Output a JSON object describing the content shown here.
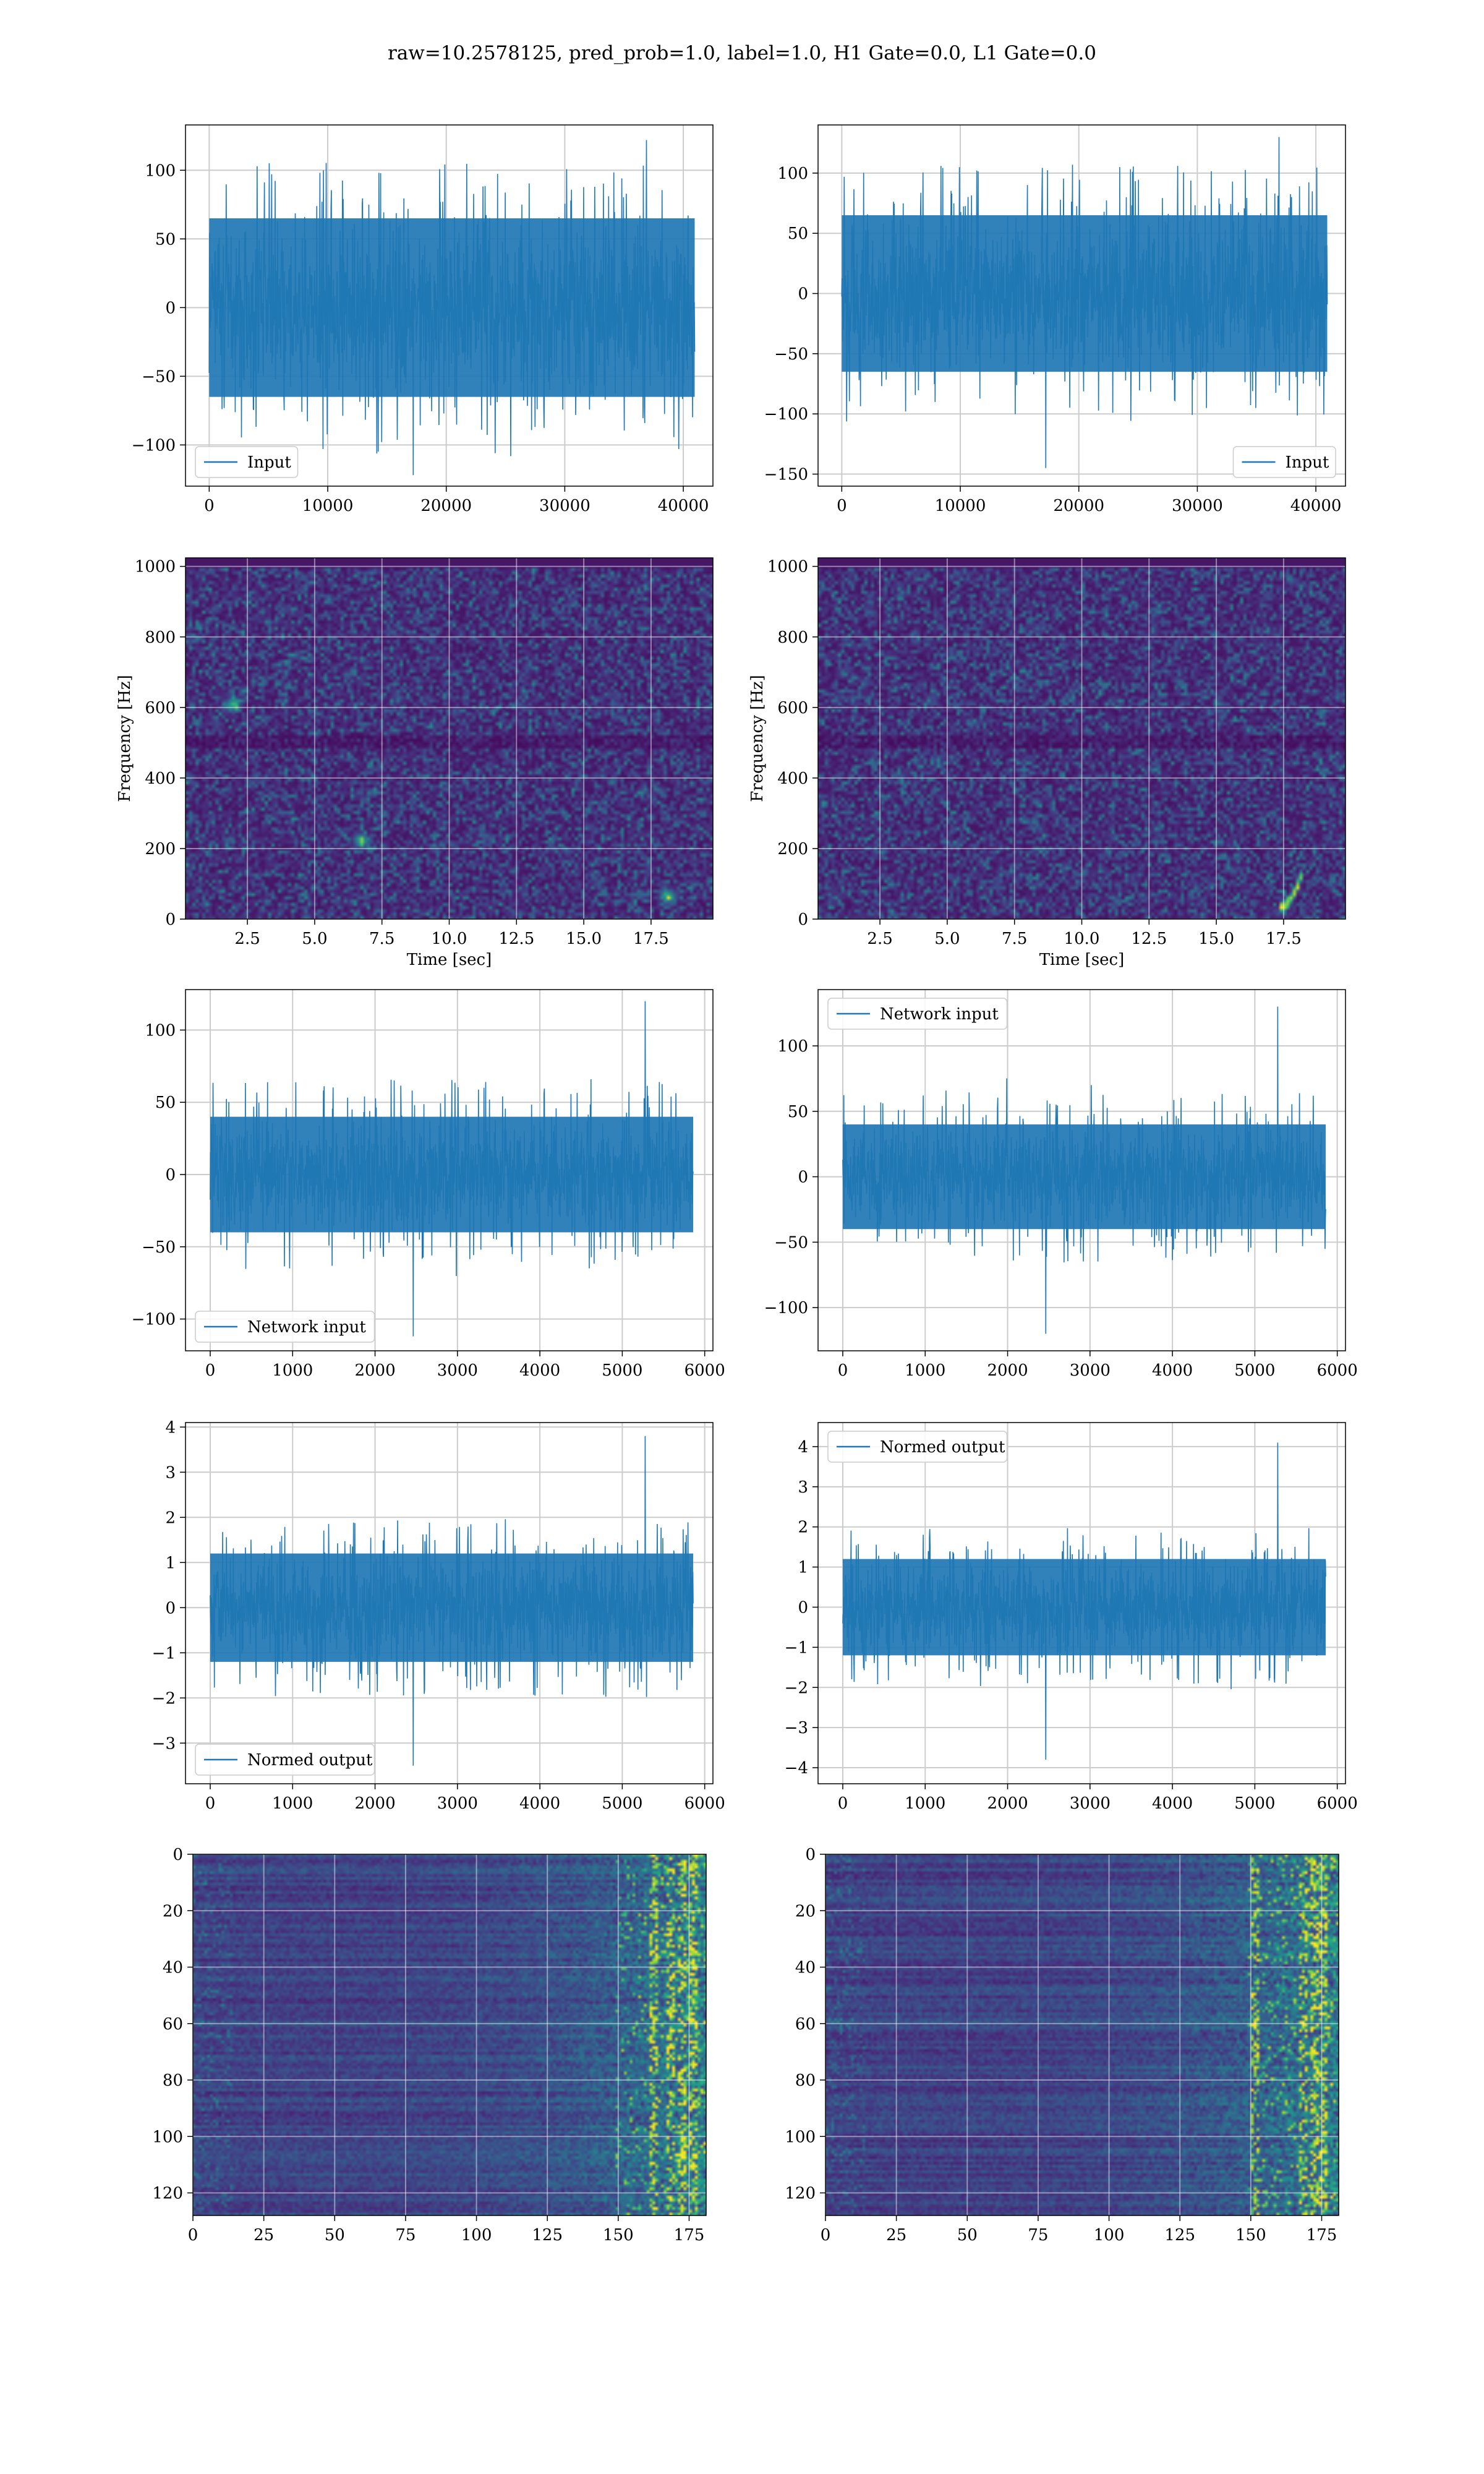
{
  "figure": {
    "suptitle": "raw=10.2578125, pred_prob=1.0, label=1.0, H1 Gate=0.0, L1 Gate=0.0"
  },
  "colors": {
    "line": "#1f77b4",
    "grid": "#cccccc",
    "viridis": [
      "#440154",
      "#482878",
      "#3e4989",
      "#31688e",
      "#26828e",
      "#1f9e89",
      "#35b779",
      "#6ece58",
      "#b5de2b",
      "#fde725"
    ]
  },
  "chart_data": [
    {
      "type": "line",
      "panel": "row1-left",
      "series": [
        {
          "name": "Input",
          "description": "dense noise time series",
          "center": 0,
          "typical_amplitude": 65,
          "peak_max": 122,
          "peak_min": -122
        }
      ],
      "x_ticks": [
        0,
        10000,
        20000,
        30000,
        40000
      ],
      "y_ticks": [
        -100,
        -50,
        0,
        50,
        100
      ],
      "xlim": [
        -2000,
        42500
      ],
      "ylim": [
        -130,
        133
      ],
      "x_data_range": [
        0,
        40960
      ],
      "legend": {
        "label": "Input",
        "placement": "lower-left"
      },
      "grid": true
    },
    {
      "type": "line",
      "panel": "row1-right",
      "series": [
        {
          "name": "Input",
          "description": "dense noise time series",
          "center": 0,
          "typical_amplitude": 65,
          "peak_max": 130,
          "peak_min": -145
        }
      ],
      "x_ticks": [
        0,
        10000,
        20000,
        30000,
        40000
      ],
      "y_ticks": [
        -150,
        -100,
        -50,
        0,
        50,
        100
      ],
      "xlim": [
        -2000,
        42500
      ],
      "ylim": [
        -160,
        140
      ],
      "x_data_range": [
        0,
        40960
      ],
      "legend": {
        "label": "Input",
        "placement": "lower-right"
      },
      "grid": true
    },
    {
      "type": "heatmap",
      "panel": "row2-left",
      "description": "spectrogram",
      "xlabel": "Time [sec]",
      "ylabel": "Frequency [Hz]",
      "x_ticks": [
        "2.5",
        "5.0",
        "7.5",
        "10.0",
        "12.5",
        "15.0",
        "17.5"
      ],
      "y_ticks": [
        "0",
        "200",
        "400",
        "600",
        "800",
        "1000"
      ],
      "xlim": [
        0.2,
        19.8
      ],
      "ylim": [
        0,
        1024
      ],
      "bright_band_hz": [
        490,
        510
      ],
      "hotspots": [
        {
          "t": 6.7,
          "f": 220
        },
        {
          "t": 1.9,
          "f": 610
        },
        {
          "t": 18.2,
          "f": 60
        }
      ],
      "grid": true
    },
    {
      "type": "heatmap",
      "panel": "row2-right",
      "description": "spectrogram with chirp near end",
      "xlabel": "Time [sec]",
      "ylabel": "Frequency [Hz]",
      "x_ticks": [
        "2.5",
        "5.0",
        "7.5",
        "10.0",
        "12.5",
        "15.0",
        "17.5"
      ],
      "y_ticks": [
        "0",
        "200",
        "400",
        "600",
        "800",
        "1000"
      ],
      "xlim": [
        0.2,
        19.8
      ],
      "ylim": [
        0,
        1024
      ],
      "bright_band_hz": [
        490,
        510
      ],
      "chirp": {
        "t_start": 17.4,
        "t_end": 18.3,
        "f_start": 30,
        "f_end": 140
      },
      "grid": true
    },
    {
      "type": "line",
      "panel": "row3-left",
      "series": [
        {
          "name": "Network input",
          "description": "whitened time series",
          "center": 0,
          "typical_amplitude": 40,
          "peak_max": 120,
          "peak_min": -112
        }
      ],
      "x_ticks": [
        0,
        1000,
        2000,
        3000,
        4000,
        5000,
        6000
      ],
      "y_ticks": [
        -100,
        -50,
        0,
        50,
        100
      ],
      "xlim": [
        -300,
        6100
      ],
      "ylim": [
        -122,
        128
      ],
      "x_data_range": [
        0,
        5860
      ],
      "legend": {
        "label": "Network input",
        "placement": "lower-left"
      },
      "grid": true
    },
    {
      "type": "line",
      "panel": "row3-right",
      "series": [
        {
          "name": "Network input",
          "description": "whitened time series",
          "center": 0,
          "typical_amplitude": 40,
          "peak_max": 130,
          "peak_min": -120
        }
      ],
      "x_ticks": [
        0,
        1000,
        2000,
        3000,
        4000,
        5000,
        6000
      ],
      "y_ticks": [
        -100,
        -50,
        0,
        50,
        100
      ],
      "xlim": [
        -300,
        6100
      ],
      "ylim": [
        -133,
        143
      ],
      "x_data_range": [
        0,
        5860
      ],
      "legend": {
        "label": "Network input",
        "placement": "upper-left"
      },
      "grid": true
    },
    {
      "type": "line",
      "panel": "row4-left",
      "series": [
        {
          "name": "Normed output",
          "description": "normalized time series",
          "center": 0,
          "typical_amplitude": 1.2,
          "peak_max": 3.8,
          "peak_min": -3.5
        }
      ],
      "x_ticks": [
        0,
        1000,
        2000,
        3000,
        4000,
        5000,
        6000
      ],
      "y_ticks": [
        -3,
        -2,
        -1,
        0,
        1,
        2,
        3,
        4
      ],
      "xlim": [
        -300,
        6100
      ],
      "ylim": [
        -3.9,
        4.1
      ],
      "x_data_range": [
        0,
        5860
      ],
      "legend": {
        "label": "Normed output",
        "placement": "lower-left"
      },
      "grid": true
    },
    {
      "type": "line",
      "panel": "row4-right",
      "series": [
        {
          "name": "Normed output",
          "description": "normalized time series",
          "center": 0,
          "typical_amplitude": 1.2,
          "peak_max": 4.1,
          "peak_min": -3.8
        }
      ],
      "x_ticks": [
        0,
        1000,
        2000,
        3000,
        4000,
        5000,
        6000
      ],
      "y_ticks": [
        -4,
        -3,
        -2,
        -1,
        0,
        1,
        2,
        3,
        4
      ],
      "xlim": [
        -300,
        6100
      ],
      "ylim": [
        -4.4,
        4.6
      ],
      "x_data_range": [
        0,
        5860
      ],
      "legend": {
        "label": "Normed output",
        "placement": "upper-left"
      },
      "grid": true
    },
    {
      "type": "heatmap",
      "panel": "row5-left",
      "description": "feature map, 128 channels by 183 steps, activity increasing toward the right",
      "x_ticks": [
        "0",
        "25",
        "50",
        "75",
        "100",
        "125",
        "150",
        "175"
      ],
      "y_ticks": [
        "0",
        "20",
        "40",
        "60",
        "80",
        "100",
        "120"
      ],
      "xlim": [
        0,
        181
      ],
      "ylim": [
        128,
        0
      ],
      "hot_columns": [
        162,
        168,
        172,
        176
      ],
      "grid": true
    },
    {
      "type": "heatmap",
      "panel": "row5-right",
      "description": "feature map, 128 channels by 183 steps, activity increasing toward the right",
      "x_ticks": [
        "0",
        "25",
        "50",
        "75",
        "100",
        "125",
        "150",
        "175"
      ],
      "y_ticks": [
        "0",
        "20",
        "40",
        "60",
        "80",
        "100",
        "120"
      ],
      "xlim": [
        0,
        181
      ],
      "ylim": [
        128,
        0
      ],
      "hot_columns": [
        151,
        168,
        172,
        175
      ],
      "grid": true
    }
  ]
}
